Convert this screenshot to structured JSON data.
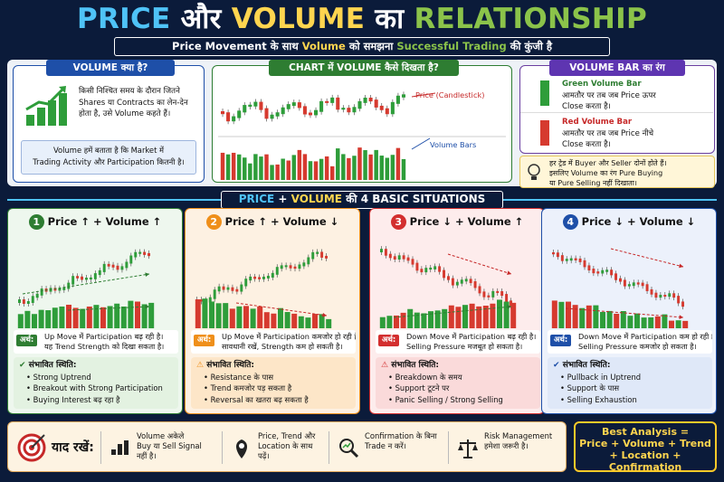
{
  "header": {
    "title_parts": [
      "PRICE",
      " और ",
      "VOLUME",
      " का ",
      "RELATIONSHIP"
    ],
    "subtitle_parts": [
      "Price Movement के साथ ",
      "Volume",
      " को समझना ",
      "Successful Trading",
      " की कुंजी है"
    ]
  },
  "volume_box": {
    "caption": "VOLUME क्या है?",
    "text": [
      "किसी निश्चित समय के दौरान जितने",
      "Shares या Contracts का लेन-देन",
      "होता है, उसे Volume कहते हैं।"
    ],
    "note": [
      "Volume हमें बताता है कि Market में",
      "Trading Activity और Participation कितनी है।"
    ]
  },
  "chart_box": {
    "caption": "CHART में VOLUME कैसे दिखता है?",
    "price_label": "Price (Candlestick)",
    "volume_label": "Volume Bars"
  },
  "color_box": {
    "caption": "VOLUME BAR का रंग",
    "green_title": "Green Volume Bar",
    "green_text": [
      "आमतौर पर तब जब Price ऊपर",
      "Close करता है।"
    ],
    "red_title": "Red Volume Bar",
    "red_text": [
      "आमतौर पर तब जब Price नीचे",
      "Close करता है।"
    ],
    "tip": [
      "हर ट्रेड में Buyer और Seller दोनों होते हैं।",
      "इसलिए Volume का रंग Pure Buying",
      "या Pure Selling नहीं दिखाता।"
    ]
  },
  "situations_banner": {
    "parts": [
      "PRICE",
      " + ",
      "VOLUME",
      " की 4 BASIC SITUATIONS"
    ]
  },
  "situations": [
    {
      "num": "1",
      "title": "Price ↑ + Volume ↑",
      "arth_label": "अर्थ:",
      "arth": [
        "Up Move में Participation बढ़ रही है।",
        "यह Trend Strength को दिखा सकता है।"
      ],
      "status_title": "संभावित स्थिति:",
      "points": [
        "Strong Uptrend",
        "Breakout with Strong Participation",
        "Buying Interest बढ़ रहा है"
      ],
      "accent": "#2e7d32"
    },
    {
      "num": "2",
      "title": "Price ↑ + Volume ↓",
      "arth_label": "अर्थ:",
      "arth": [
        "Up Move में Participation कमजोर हो रही है।",
        "सावधानी रखें, Strength कम हो सकती है।"
      ],
      "status_title": "संभावित स्थिति:",
      "points": [
        "Resistance के पास",
        "Trend कमजोर पड़ सकता है",
        "Reversal का खतरा बढ़ सकता है"
      ],
      "accent": "#ef8f1a"
    },
    {
      "num": "3",
      "title": "Price ↓ + Volume ↑",
      "arth_label": "अर्थ:",
      "arth": [
        "Down Move में Participation बढ़ रही है।",
        "Selling Pressure मजबूत हो सकता है।"
      ],
      "status_title": "संभावित स्थिति:",
      "points": [
        "Breakdown के समय",
        "Support टूटने पर",
        "Panic Selling / Strong Selling"
      ],
      "accent": "#d32f2f"
    },
    {
      "num": "4",
      "title": "Price ↓ + Volume ↓",
      "arth_label": "अर्थ:",
      "arth": [
        "Down Move में Participation कम हो रही है।",
        "Selling Pressure कमजोर हो सकता है।"
      ],
      "status_title": "संभावित स्थिति:",
      "points": [
        "Pullback in Uptrend",
        "Support के पास",
        "Selling Exhaustion"
      ],
      "accent": "#1e4fa8"
    }
  ],
  "remember": {
    "label": "याद रखें:",
    "items": [
      {
        "icon": "volume-bars-icon",
        "text": [
          "Volume अकेले",
          "Buy या Sell Signal",
          "नहीं है।"
        ]
      },
      {
        "icon": "location-pin-icon",
        "text": [
          "Price, Trend और",
          "Location के साथ",
          "पढ़ें।"
        ]
      },
      {
        "icon": "magnifier-chart-icon",
        "text": [
          "Confirmation के बिना",
          "Trade न करें।"
        ]
      },
      {
        "icon": "balance-scale-icon",
        "text": [
          "Risk Management",
          "हमेशा जरूरी है।"
        ]
      }
    ]
  },
  "best": {
    "lines": [
      "Best Analysis =",
      "Price + Volume + Trend",
      "+ Location + Confirmation"
    ]
  },
  "colors": {
    "navy": "#0b1b3a",
    "green": "#2e9d3a",
    "red": "#d63a2f",
    "yellow": "#ffd54f",
    "blue": "#4fc3f7"
  }
}
